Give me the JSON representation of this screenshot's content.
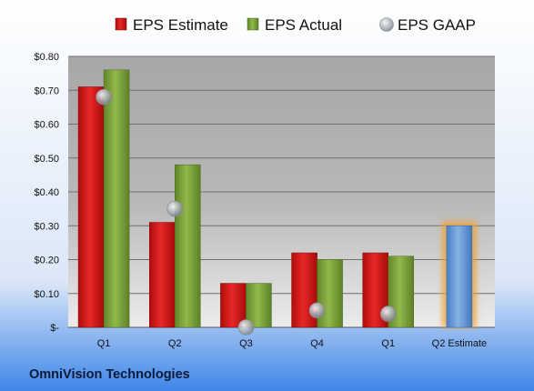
{
  "chart_data": {
    "type": "bar",
    "categories": [
      "Q1",
      "Q2",
      "Q3",
      "Q4",
      "Q1",
      "Q2 Estimate"
    ],
    "series": [
      {
        "name": "EPS Estimate",
        "values": [
          0.71,
          0.31,
          0.13,
          0.22,
          0.22,
          0.3
        ],
        "color": "#cc1010"
      },
      {
        "name": "EPS Actual",
        "values": [
          0.76,
          0.48,
          0.13,
          0.2,
          0.21,
          null
        ],
        "color": "#7a9e35"
      },
      {
        "name": "EPS GAAP",
        "type": "scatter",
        "values": [
          0.68,
          0.35,
          0.0,
          0.05,
          0.04,
          null
        ],
        "color": "#b8bcc4"
      }
    ],
    "estimate_highlight": {
      "category_index": 5,
      "bar_color": "#5b8fd0",
      "glow_color": "#f0a030"
    },
    "ylim": [
      0,
      0.8
    ],
    "yticks": [
      0,
      0.1,
      0.2,
      0.3,
      0.4,
      0.5,
      0.6,
      0.7,
      0.8
    ],
    "ytick_labels": [
      "$-",
      "$0.10",
      "$0.20",
      "$0.30",
      "$0.40",
      "$0.50",
      "$0.60",
      "$0.70",
      "$0.80"
    ],
    "grid": true,
    "legend_position": "top",
    "company": "OmniVision Technologies"
  }
}
